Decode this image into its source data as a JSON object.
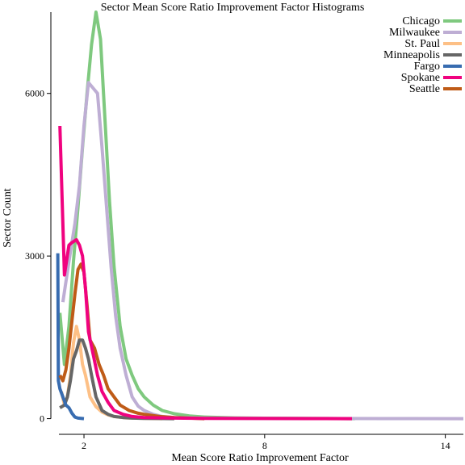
{
  "chart_data": {
    "type": "line",
    "title": "Sector Mean Score Ratio Improvement Factor Histograms",
    "xlabel": "Mean Score Ratio Improvement Factor",
    "ylabel": "Sector Count",
    "xlim": [
      0.9,
      14.6
    ],
    "ylim": [
      -200,
      7500
    ],
    "x_ticks": [
      2,
      8,
      14
    ],
    "x_tick_labels": [
      "2",
      "8",
      "14"
    ],
    "y_ticks": [
      0,
      3000,
      6000
    ],
    "y_tick_labels": [
      "0",
      "3000",
      "6000"
    ],
    "grid": false,
    "legend_position": "top-right",
    "series": [
      {
        "name": "Chicago",
        "color": "#7fc97f",
        "x": [
          1.2,
          1.35,
          1.5,
          1.65,
          1.8,
          1.95,
          2.1,
          2.25,
          2.4,
          2.55,
          2.7,
          2.85,
          3.0,
          3.2,
          3.4,
          3.6,
          3.8,
          4.0,
          4.3,
          4.6,
          5.0,
          5.5,
          6.0,
          7.0,
          8.0,
          10.0,
          11.0
        ],
        "y": [
          1950,
          1000,
          1700,
          2900,
          3900,
          5000,
          6000,
          6900,
          7500,
          7000,
          5500,
          4000,
          2800,
          1700,
          1100,
          800,
          550,
          400,
          250,
          150,
          90,
          50,
          30,
          15,
          8,
          3,
          0
        ]
      },
      {
        "name": "Milwaukee",
        "color": "#beaed4",
        "x": [
          1.3,
          1.5,
          1.7,
          1.85,
          2.0,
          2.15,
          2.3,
          2.45,
          2.6,
          2.75,
          2.9,
          3.05,
          3.2,
          3.4,
          3.6,
          3.8,
          4.0,
          4.3,
          4.6,
          5.0,
          6.0,
          8.0,
          10.0,
          12.0,
          14.6
        ],
        "y": [
          2150,
          2900,
          3600,
          4300,
          5400,
          6200,
          6100,
          6000,
          5000,
          3900,
          2800,
          1900,
          1300,
          800,
          400,
          230,
          150,
          80,
          40,
          20,
          8,
          4,
          2,
          1,
          0
        ]
      },
      {
        "name": "St. Paul",
        "color": "#fdc086",
        "x": [
          1.25,
          1.35,
          1.45,
          1.55,
          1.65,
          1.75,
          1.85,
          1.95,
          2.05,
          2.2,
          2.4,
          2.6,
          2.8,
          3.0,
          3.4,
          3.8,
          4.2,
          4.6
        ],
        "y": [
          500,
          250,
          400,
          800,
          1400,
          1700,
          1450,
          1000,
          800,
          400,
          220,
          120,
          70,
          40,
          15,
          8,
          4,
          0
        ]
      },
      {
        "name": "Minneapolis",
        "color": "#666666",
        "x": [
          1.2,
          1.35,
          1.45,
          1.55,
          1.65,
          1.75,
          1.85,
          1.95,
          2.05,
          2.15,
          2.25,
          2.4,
          2.6,
          2.8,
          3.0,
          3.3,
          3.6,
          4.0,
          4.5,
          5.0
        ],
        "y": [
          200,
          250,
          400,
          700,
          1100,
          1250,
          1450,
          1450,
          1300,
          1100,
          800,
          400,
          150,
          80,
          40,
          20,
          10,
          5,
          2,
          0
        ]
      },
      {
        "name": "Fargo",
        "color": "#386cb0",
        "x": [
          1.13,
          1.15,
          1.2,
          1.3,
          1.4,
          1.5,
          1.6,
          1.7,
          1.8,
          1.9,
          2.0
        ],
        "y": [
          3050,
          700,
          550,
          400,
          250,
          200,
          100,
          30,
          10,
          5,
          0
        ]
      },
      {
        "name": "Spokane",
        "color": "#f0027f",
        "x": [
          1.2,
          1.35,
          1.5,
          1.6,
          1.75,
          1.85,
          1.95,
          2.05,
          2.15,
          2.3,
          2.45,
          2.6,
          2.8,
          3.0,
          3.3,
          3.6,
          4.0,
          5.0,
          6.0,
          8.0,
          10.0,
          10.9
        ],
        "y": [
          5400,
          2650,
          3200,
          3250,
          3300,
          3200,
          3000,
          2400,
          1600,
          1200,
          800,
          500,
          300,
          150,
          80,
          40,
          20,
          10,
          5,
          2,
          1,
          0
        ]
      },
      {
        "name": "Seattle",
        "color": "#bf5b17",
        "x": [
          1.2,
          1.3,
          1.4,
          1.5,
          1.6,
          1.7,
          1.8,
          1.9,
          2.0,
          2.1,
          2.2,
          2.35,
          2.5,
          2.65,
          2.8,
          3.0,
          3.2,
          3.5,
          3.8,
          4.0,
          4.5,
          5.0,
          5.5,
          6.0
        ],
        "y": [
          800,
          700,
          900,
          1300,
          1800,
          2300,
          2750,
          2850,
          2700,
          2100,
          1450,
          1300,
          1000,
          800,
          550,
          400,
          250,
          150,
          100,
          80,
          40,
          20,
          10,
          0
        ]
      }
    ]
  }
}
